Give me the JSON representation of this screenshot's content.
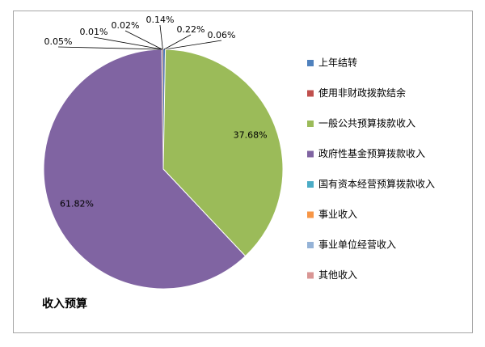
{
  "chart_data": {
    "type": "pie",
    "title": "收入预算",
    "categories": [
      "上年结转",
      "使用非财政拨款结余",
      "一般公共预算拨款收入",
      "政府性基金预算拨款收入",
      "国有资本经营预算拨款收入",
      "事业收入",
      "事业单位经营收入",
      "其他收入"
    ],
    "values": [
      0.22,
      0.06,
      37.68,
      61.82,
      0.05,
      0.01,
      0.02,
      0.14
    ],
    "value_labels": [
      "0.22%",
      "0.06%",
      "37.68%",
      "61.82%",
      "0.05%",
      "0.01%",
      "0.02%",
      "0.14%"
    ],
    "colors": [
      "#4f81bd",
      "#c0504d",
      "#9bbb59",
      "#8064a2",
      "#4bacc6",
      "#f79646",
      "#95b3d7",
      "#d99694"
    ],
    "legend": "right"
  }
}
